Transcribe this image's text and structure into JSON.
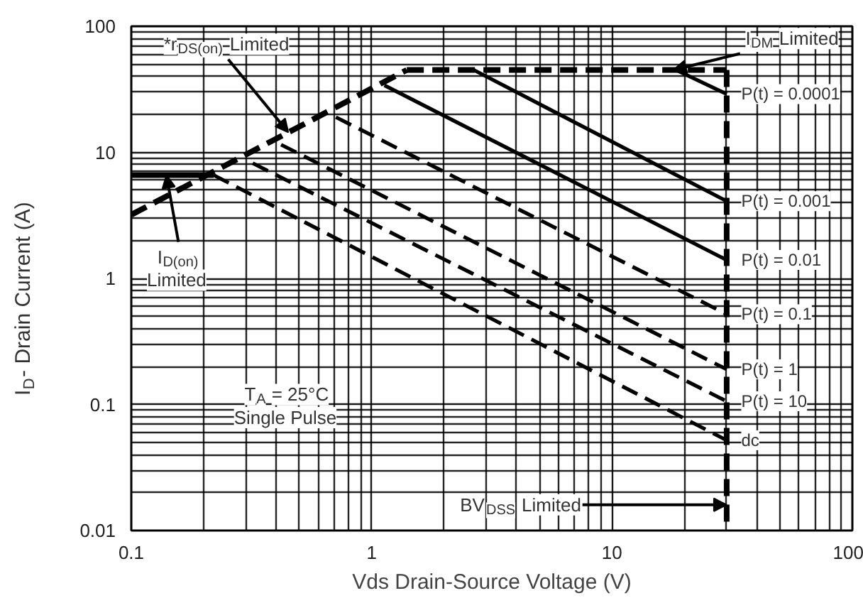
{
  "chart_data": {
    "type": "line",
    "xlabel": "Vds Drain-Source Voltage (V)",
    "ylabel": "I$_{D}$- Drain Current (A)",
    "log": "xy",
    "xlim": [
      0.1,
      100
    ],
    "ylim": [
      0.01,
      100
    ],
    "xticks": [
      0.1,
      1,
      10,
      100
    ],
    "yticks": [
      0.01,
      0.1,
      1,
      10,
      100
    ],
    "grid": true,
    "legend": false,
    "series": [
      {
        "color": "#000000",
        "line_style": "dashed",
        "x": [
          0.1,
          0.45,
          1.4
        ],
        "values": [
          3.2,
          14.4,
          45
        ]
      },
      {
        "color": "#000000",
        "line_style": "solid",
        "x": [
          0.1,
          0.22
        ],
        "values": [
          6.6,
          6.6
        ]
      },
      {
        "color": "#000000",
        "line_style": "dashed",
        "x": [
          1.4,
          18,
          30
        ],
        "values": [
          45,
          45,
          45
        ]
      },
      {
        "color": "#000000",
        "line_style": "dashed",
        "x": [
          30,
          30
        ],
        "values": [
          45,
          0.01
        ]
      },
      {
        "name": "P(t) = 0.0001",
        "color": "#000000",
        "line_style": "solid",
        "x": [
          18.5,
          30
        ],
        "values": [
          45,
          29
        ]
      },
      {
        "name": "P(t) = 0.001",
        "color": "#000000",
        "line_style": "solid",
        "x": [
          2.66,
          30
        ],
        "values": [
          45,
          4.1
        ]
      },
      {
        "name": "P(t) = 0.01",
        "color": "#000000",
        "line_style": "solid",
        "x": [
          1.13,
          30
        ],
        "values": [
          34,
          1.4
        ]
      },
      {
        "name": "P(t) = 0.1",
        "color": "#000000",
        "line_style": "dashed",
        "x": [
          0.71,
          30
        ],
        "values": [
          19,
          0.52
        ]
      },
      {
        "name": "P(t) = 1",
        "color": "#000000",
        "line_style": "dashed",
        "x": [
          0.42,
          30
        ],
        "values": [
          11.5,
          0.19
        ]
      },
      {
        "name": "P(t) = 10",
        "color": "#000000",
        "line_style": "dashed",
        "x": [
          0.32,
          30
        ],
        "values": [
          8.2,
          0.106
        ]
      },
      {
        "name": "dc",
        "color": "#000000",
        "line_style": "dashed",
        "x": [
          0.22,
          30
        ],
        "values": [
          6.6,
          0.052
        ]
      }
    ],
    "annotations": [
      {
        "text": "*r$_{DS(on)}$ Limited",
        "x": 0.45,
        "y": 14.4
      },
      {
        "text": "I$_{DM}$ Limited",
        "x": 18,
        "y": 45
      },
      {
        "text": "I$_{D(on)}$\nLimited",
        "x": 0.14,
        "y": 6.6
      },
      "T$_{A}$ = 25°C\nSingle Pulse",
      {
        "text": "BV$_{DSS}$ Limited",
        "x": 30,
        "y": 0.016
      }
    ]
  }
}
